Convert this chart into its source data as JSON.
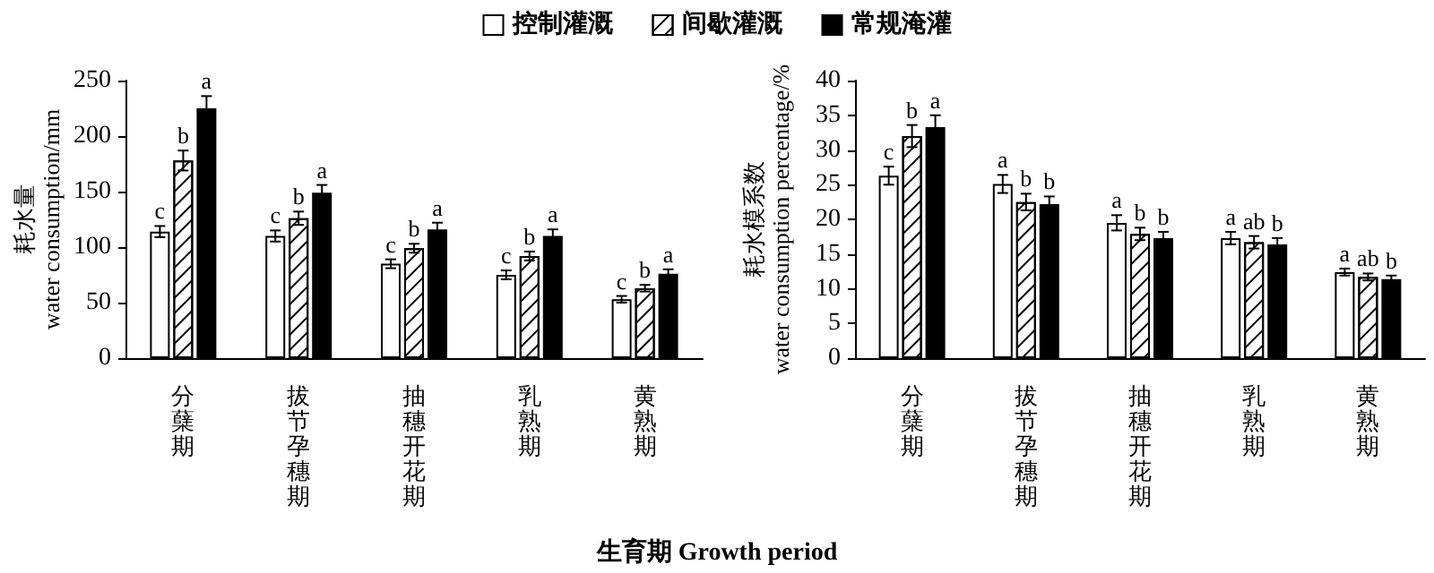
{
  "chart_data": [
    {
      "type": "bar",
      "xlabel": "生育期 Growth period",
      "ylabel": "耗水量\nwater consumption/mm",
      "categories": [
        "分蘖期",
        "拔节孕穗期",
        "抽穗开花期",
        "乳熟期",
        "黄熟期"
      ],
      "series": [
        {
          "name": "控制灌溉",
          "color": "#ffffff",
          "values": [
            114,
            110,
            85,
            75,
            53
          ],
          "errors": [
            5,
            5,
            4,
            4,
            3
          ],
          "value_labels": [
            "c",
            "c",
            "c",
            "c",
            "c"
          ]
        },
        {
          "name": "间歇灌溉",
          "color": "#ffffff",
          "values": [
            178,
            126,
            99,
            92,
            63
          ],
          "errors": [
            9,
            6,
            4,
            4,
            3
          ],
          "value_labels": [
            "b",
            "b",
            "b",
            "b",
            "b"
          ]
        },
        {
          "name": "常规淹灌",
          "color": "#000000",
          "values": [
            225,
            149,
            116,
            110,
            76
          ],
          "errors": [
            11,
            7,
            6,
            6,
            4
          ],
          "value_labels": [
            "a",
            "a",
            "a",
            "a",
            "a"
          ]
        }
      ],
      "ylim": [
        0,
        250
      ],
      "yticks": [
        0,
        50,
        100,
        150,
        200,
        250
      ],
      "grid": false,
      "legend": "top"
    },
    {
      "type": "bar",
      "ylabel": "耗水模系数\nwater consumption percentage/%",
      "categories": [
        "分蘖期",
        "拔节孕穗期",
        "抽穗开花期",
        "乳熟期",
        "黄熟期"
      ],
      "series": [
        {
          "color": "#ffffff",
          "values": [
            26.3,
            25.1,
            19.5,
            17.3,
            12.4
          ],
          "errors": [
            1.3,
            1.3,
            1.1,
            0.9,
            0.5
          ],
          "value_labels": [
            "c",
            "a",
            "a",
            "a",
            "a"
          ]
        },
        {
          "color": "#ffffff",
          "values": [
            32.0,
            22.5,
            17.9,
            16.7,
            11.7
          ],
          "errors": [
            1.6,
            1.2,
            0.9,
            0.9,
            0.5
          ],
          "value_labels": [
            "b",
            "b",
            "b",
            "ab",
            "ab"
          ]
        },
        {
          "color": "#000000",
          "values": [
            33.3,
            22.2,
            17.3,
            16.4,
            11.4
          ],
          "errors": [
            1.7,
            1.1,
            0.9,
            0.9,
            0.5
          ],
          "value_labels": [
            "a",
            "b",
            "b",
            "b",
            "b"
          ]
        }
      ],
      "ylim": [
        0,
        40
      ],
      "yticks": [
        0,
        5,
        10,
        15,
        20,
        25,
        30,
        35,
        40
      ],
      "grid": false,
      "legend": false
    }
  ]
}
